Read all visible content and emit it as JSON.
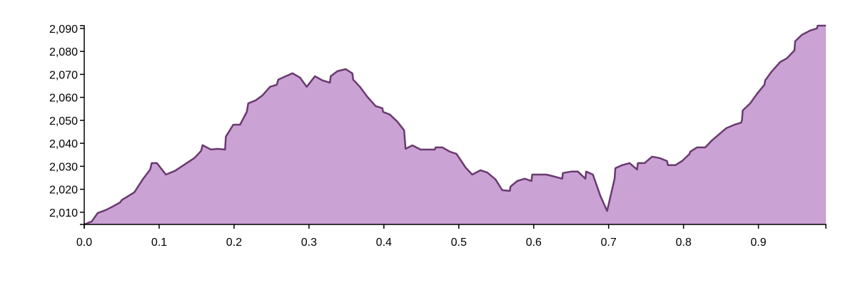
{
  "chart_data": {
    "type": "area",
    "x": [
      0,
      0.01,
      0.018,
      0.029,
      0.038,
      0.048,
      0.05,
      0.067,
      0.078,
      0.088,
      0.09,
      0.097,
      0.109,
      0.121,
      0.147,
      0.156,
      0.158,
      0.169,
      0.178,
      0.188,
      0.189,
      0.199,
      0.208,
      0.217,
      0.219,
      0.229,
      0.238,
      0.248,
      0.257,
      0.259,
      0.269,
      0.278,
      0.288,
      0.297,
      0.308,
      0.318,
      0.328,
      0.329,
      0.338,
      0.349,
      0.358,
      0.359,
      0.368,
      0.378,
      0.389,
      0.398,
      0.399,
      0.408,
      0.418,
      0.427,
      0.429,
      0.438,
      0.449,
      0.458,
      0.468,
      0.469,
      0.478,
      0.488,
      0.497,
      0.509,
      0.518,
      0.529,
      0.538,
      0.549,
      0.558,
      0.568,
      0.569,
      0.578,
      0.588,
      0.597,
      0.598,
      0.608,
      0.617,
      0.628,
      0.638,
      0.639,
      0.65,
      0.659,
      0.669,
      0.67,
      0.679,
      0.689,
      0.698,
      0.708,
      0.709,
      0.718,
      0.728,
      0.738,
      0.739,
      0.748,
      0.758,
      0.768,
      0.778,
      0.779,
      0.789,
      0.798,
      0.808,
      0.809,
      0.818,
      0.829,
      0.838,
      0.848,
      0.857,
      0.868,
      0.877,
      0.878,
      0.879,
      0.889,
      0.898,
      0.908,
      0.909,
      0.918,
      0.929,
      0.938,
      0.948,
      0.949,
      0.958,
      0.969,
      0.978,
      0.979,
      0.99
    ],
    "values": [
      2004.7,
      2006,
      2009.7,
      2011,
      2012.5,
      2014.3,
      2015.3,
      2018.7,
      2024.3,
      2028.6,
      2031.4,
      2031.4,
      2026.4,
      2028,
      2033.6,
      2036.7,
      2039.2,
      2037.3,
      2037.6,
      2037.3,
      2042.9,
      2048.1,
      2048.1,
      2053.7,
      2057.4,
      2058.7,
      2060.9,
      2064.6,
      2065.5,
      2067.7,
      2069.2,
      2070.5,
      2068.6,
      2064.6,
      2069.2,
      2067.4,
      2066.4,
      2069.2,
      2071.4,
      2072.3,
      2070.4,
      2067.7,
      2064.6,
      2060.2,
      2056.2,
      2055.3,
      2053.7,
      2052.5,
      2049.4,
      2045.7,
      2037.6,
      2039.1,
      2037.3,
      2037.3,
      2037.3,
      2038.2,
      2038.2,
      2036.4,
      2035.4,
      2029.5,
      2026.4,
      2028.3,
      2027.3,
      2024.3,
      2019.6,
      2019.3,
      2021.2,
      2023.6,
      2024.6,
      2023.6,
      2026.4,
      2026.4,
      2026.4,
      2025.5,
      2024.6,
      2027.1,
      2027.7,
      2027.7,
      2024.6,
      2027.7,
      2026.4,
      2017.1,
      2010.6,
      2024.6,
      2029.2,
      2030.5,
      2031.4,
      2028.6,
      2031.4,
      2031.4,
      2034.2,
      2033.6,
      2032.3,
      2030.5,
      2030.5,
      2032.3,
      2035.4,
      2036.4,
      2038.2,
      2038.2,
      2041.3,
      2044.1,
      2046.6,
      2048.1,
      2049,
      2050.3,
      2054.3,
      2057.4,
      2061.5,
      2065.5,
      2067.4,
      2071.4,
      2075.4,
      2077,
      2080.4,
      2084.4,
      2087.2,
      2089.1,
      2090,
      2091.2,
      2091.2
    ],
    "color": "#caa2d4",
    "line_color": "#6a3a70",
    "xlim": [
      0,
      0.99
    ],
    "ylim": [
      2004.7,
      2091.2
    ],
    "xticks": [
      {
        "value": 0,
        "label": "0.0"
      },
      0.1,
      0.2,
      0.3,
      0.4,
      0.5,
      0.6,
      0.7,
      0.8,
      0.9
    ],
    "yticks": [
      {
        "value": 2010,
        "label": "2,010"
      },
      {
        "value": 2020,
        "label": "2,020"
      },
      {
        "value": 2030,
        "label": "2,030"
      },
      {
        "value": 2040,
        "label": "2,040"
      },
      {
        "value": 2050,
        "label": "2,050"
      },
      {
        "value": 2060,
        "label": "2,060"
      },
      {
        "value": 2070,
        "label": "2,070"
      },
      {
        "value": 2080,
        "label": "2,080"
      },
      {
        "value": 2090,
        "label": "2,090"
      }
    ]
  }
}
